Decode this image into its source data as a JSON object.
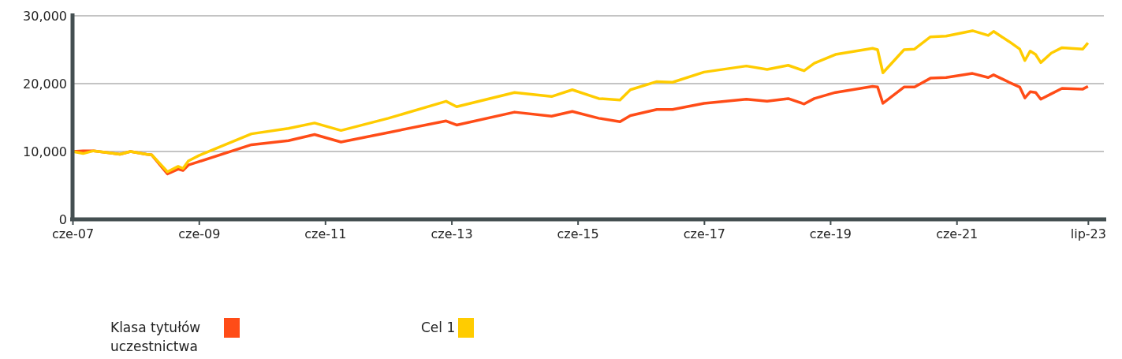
{
  "chart_data": {
    "type": "line",
    "x": [
      "2007-06",
      "2007-08",
      "2007-10",
      "2008-01",
      "2008-03",
      "2008-05",
      "2008-08",
      "2008-09",
      "2008-12",
      "2009-02",
      "2009-03",
      "2009-04",
      "2009-06",
      "2010-04",
      "2010-11",
      "2011-04",
      "2011-09",
      "2012-06",
      "2013-05",
      "2013-07",
      "2014-06",
      "2015-01",
      "2015-05",
      "2015-10",
      "2016-02",
      "2016-04",
      "2016-09",
      "2016-12",
      "2017-06",
      "2018-02",
      "2018-06",
      "2018-10",
      "2019-01",
      "2019-03",
      "2019-07",
      "2020-02",
      "2020-03",
      "2020-04",
      "2020-08",
      "2020-10",
      "2021-01",
      "2021-04",
      "2021-09",
      "2021-12",
      "2022-01",
      "2022-04",
      "2022-06",
      "2022-07",
      "2022-08",
      "2022-09",
      "2022-10",
      "2022-12",
      "2023-02",
      "2023-06",
      "2023-07"
    ],
    "series": [
      {
        "name": "Klasa tytułów uczestnictwa",
        "color": "#ff4c17",
        "values": [
          10000,
          10100,
          10100,
          9800,
          9600,
          10000,
          9600,
          9500,
          6700,
          7400,
          7200,
          8000,
          8500,
          11000,
          11600,
          12500,
          11400,
          12800,
          14500,
          13900,
          15800,
          15200,
          15900,
          14900,
          14400,
          15300,
          16200,
          16200,
          17100,
          17700,
          17400,
          17800,
          17000,
          17800,
          18700,
          19600,
          19500,
          17100,
          19500,
          19500,
          20800,
          20900,
          21500,
          20900,
          21300,
          20200,
          19500,
          17900,
          18800,
          18700,
          17700,
          18500,
          19300,
          19200,
          19600
        ]
      },
      {
        "name": "Cel 1",
        "color": "#ffcc00",
        "values": [
          10000,
          9700,
          10100,
          9800,
          9600,
          10000,
          9600,
          9500,
          7000,
          7800,
          7500,
          8600,
          9400,
          12600,
          13400,
          14200,
          13100,
          14900,
          17400,
          16600,
          18700,
          18100,
          19100,
          17800,
          17600,
          19100,
          20300,
          20200,
          21700,
          22600,
          22100,
          22700,
          21900,
          23000,
          24300,
          25200,
          25000,
          21600,
          25000,
          25100,
          26900,
          27000,
          27800,
          27100,
          27700,
          26200,
          25100,
          23400,
          24800,
          24300,
          23100,
          24500,
          25300,
          25100,
          26000
        ]
      }
    ],
    "xlim": [
      "2007-06",
      "2023-10"
    ],
    "xticks": [
      {
        "value": "2007-06",
        "label": "cze-07"
      },
      {
        "value": "2009-06",
        "label": "cze-09"
      },
      {
        "value": "2011-06",
        "label": "cze-11"
      },
      {
        "value": "2013-06",
        "label": "cze-13"
      },
      {
        "value": "2015-06",
        "label": "cze-15"
      },
      {
        "value": "2017-06",
        "label": "cze-17"
      },
      {
        "value": "2019-06",
        "label": "cze-19"
      },
      {
        "value": "2021-06",
        "label": "cze-21"
      },
      {
        "value": "2023-07",
        "label": "lip-23"
      }
    ],
    "ylim": [
      0,
      30000
    ],
    "yticks": [
      {
        "value": 0,
        "label": "0"
      },
      {
        "value": 10000,
        "label": "10,000"
      },
      {
        "value": 20000,
        "label": "20,000"
      },
      {
        "value": 30000,
        "label": "30,000"
      }
    ],
    "grid": "y",
    "legend": "bottom left",
    "line_style": "solid",
    "marker": "none"
  }
}
